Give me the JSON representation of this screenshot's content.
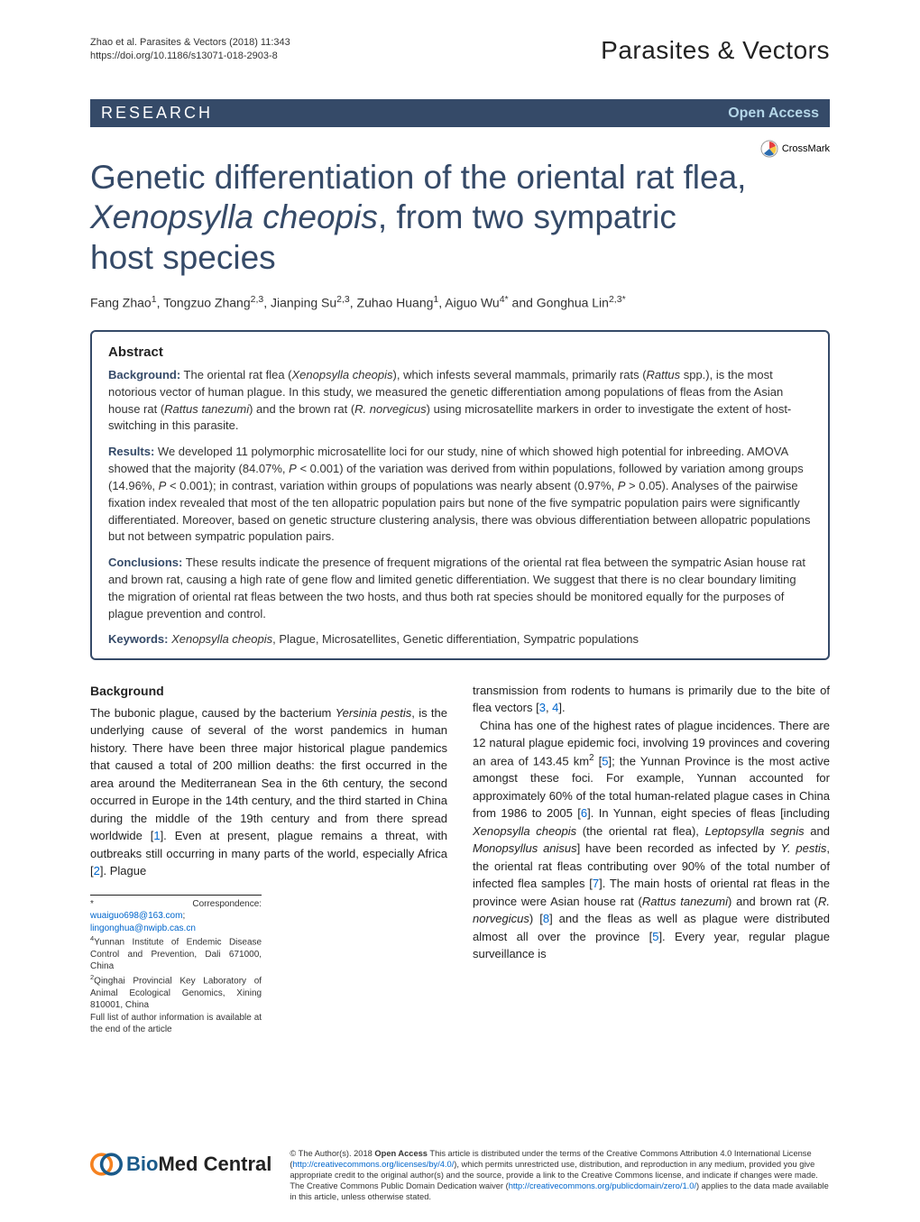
{
  "header": {
    "citation_line1": "Zhao et al. Parasites & Vectors  (2018) 11:343",
    "citation_line2": "https://doi.org/10.1186/s13071-018-2903-8",
    "journal_name": "Parasites & Vectors"
  },
  "research_bar": {
    "label": "RESEARCH",
    "open_access": "Open Access"
  },
  "crossmark": {
    "label": "CrossMark"
  },
  "title": "Genetic differentiation of the oriental rat flea, Xenopsylla cheopis, from two sympatric host species",
  "authors_html": "Fang Zhao<sup>1</sup>, Tongzuo Zhang<sup>2,3</sup>, Jianping Su<sup>2,3</sup>, Zuhao Huang<sup>1</sup>, Aiguo Wu<sup>4*</sup> and Gonghua Lin<sup>2,3*</sup>",
  "abstract": {
    "heading": "Abstract",
    "background_html": "<strong>Background:</strong> The oriental rat flea (<em>Xenopsylla cheopis</em>), which infests several mammals, primarily rats (<em>Rattus</em> spp.), is the most notorious vector of human plague. In this study, we measured the genetic differentiation among populations of fleas from the Asian house rat (<em>Rattus tanezumi</em>) and the brown rat (<em>R. norvegicus</em>) using microsatellite markers in order to investigate the extent of host-switching in this parasite.",
    "results_html": "<strong>Results:</strong> We developed 11 polymorphic microsatellite loci for our study, nine of which showed high potential for inbreeding. AMOVA showed that the majority (84.07%, <em>P</em> &lt; 0.001) of the variation was derived from within populations, followed by variation among groups (14.96%, <em>P</em> &lt; 0.001); in contrast, variation within groups of populations was nearly absent (0.97%, <em>P</em> &gt; 0.05). Analyses of the pairwise fixation index revealed that most of the ten allopatric population pairs but none of the five sympatric population pairs were significantly differentiated. Moreover, based on genetic structure clustering analysis, there was obvious differentiation between allopatric populations but not between sympatric population pairs.",
    "conclusions_html": "<strong>Conclusions:</strong> These results indicate the presence of frequent migrations of the oriental rat flea between the sympatric Asian house rat and brown rat, causing a high rate of gene flow and limited genetic differentiation. We suggest that there is no clear boundary limiting the migration of oriental rat fleas between the two hosts, and thus both rat species should be monitored equally for the purposes of plague prevention and control.",
    "keywords_html": "<strong>Keywords:</strong> <em>Xenopsylla cheopis</em>, Plague, Microsatellites, Genetic differentiation, Sympatric populations"
  },
  "body": {
    "background_heading": "Background",
    "col1_html": "The bubonic plague, caused by the bacterium <em>Yersinia pestis</em>, is the underlying cause of several of the worst pandemics in human history. There have been three major historical plague pandemics that caused a total of 200 million deaths: the first occurred in the area around the Mediterranean Sea in the 6th century, the second occurred in Europe in the 14th century, and the third started in China during the middle of the 19th century and from there spread worldwide [<a>1</a>]. Even at present, plague remains a threat, with outbreaks still occurring in many parts of the world, especially Africa [<a>2</a>]. Plague",
    "col2_html": "transmission from rodents to humans is primarily due to the bite of flea vectors [<a>3</a>, <a>4</a>].<br>&nbsp;&nbsp;China has one of the highest rates of plague incidences. There are 12 natural plague epidemic foci, involving 19 provinces and covering an area of 143.45 km<sup>2</sup> [<a>5</a>]; the Yunnan Province is the most active amongst these foci. For example, Yunnan accounted for approximately 60% of the total human-related plague cases in China from 1986 to 2005 [<a>6</a>]. In Yunnan, eight species of fleas [including <em>Xenopsylla cheopis</em> (the oriental rat flea), <em>Leptopsylla segnis</em> and <em>Monopsyllus anisus</em>] have been recorded as infected by <em>Y. pestis</em>, the oriental rat fleas contributing over 90% of the total number of infected flea samples [<a>7</a>]. The main hosts of oriental rat fleas in the province were Asian house rat (<em>Rattus tanezumi</em>) and brown rat (<em>R. norvegicus</em>) [<a>8</a>] and the fleas as well as plague were distributed almost all over the province [<a>5</a>]. Every year, regular plague surveillance is"
  },
  "footnotes_html": "* Correspondence: <a>wuaiguo698@163.com</a>; <a>lingonghua@nwipb.cas.cn</a><br><sup>4</sup>Yunnan Institute of Endemic Disease Control and Prevention, Dali 671000, China<br><sup>2</sup>Qinghai Provincial Key Laboratory of Animal Ecological Genomics, Xining 810001, China<br>Full list of author information is available at the end of the article",
  "footer": {
    "bmc_text": "BioMed Central",
    "license_html": "© The Author(s). 2018 <strong>Open Access</strong> This article is distributed under the terms of the Creative Commons Attribution 4.0 International License (<a>http://creativecommons.org/licenses/by/4.0/</a>), which permits unrestricted use, distribution, and reproduction in any medium, provided you give appropriate credit to the original author(s) and the source, provide a link to the Creative Commons license, and indicate if changes were made. The Creative Commons Public Domain Dedication waiver (<a>http://creativecommons.org/publicdomain/zero/1.0/</a>) applies to the data made available in this article, unless otherwise stated."
  },
  "colors": {
    "brand": "#354a68",
    "link": "#0066cc",
    "bmc_orange": "#f58220",
    "bmc_blue": "#1a5a8a",
    "crossmark_red": "#e53e3e",
    "crossmark_yellow": "#f7c948",
    "crossmark_blue": "#2b6cb0"
  }
}
